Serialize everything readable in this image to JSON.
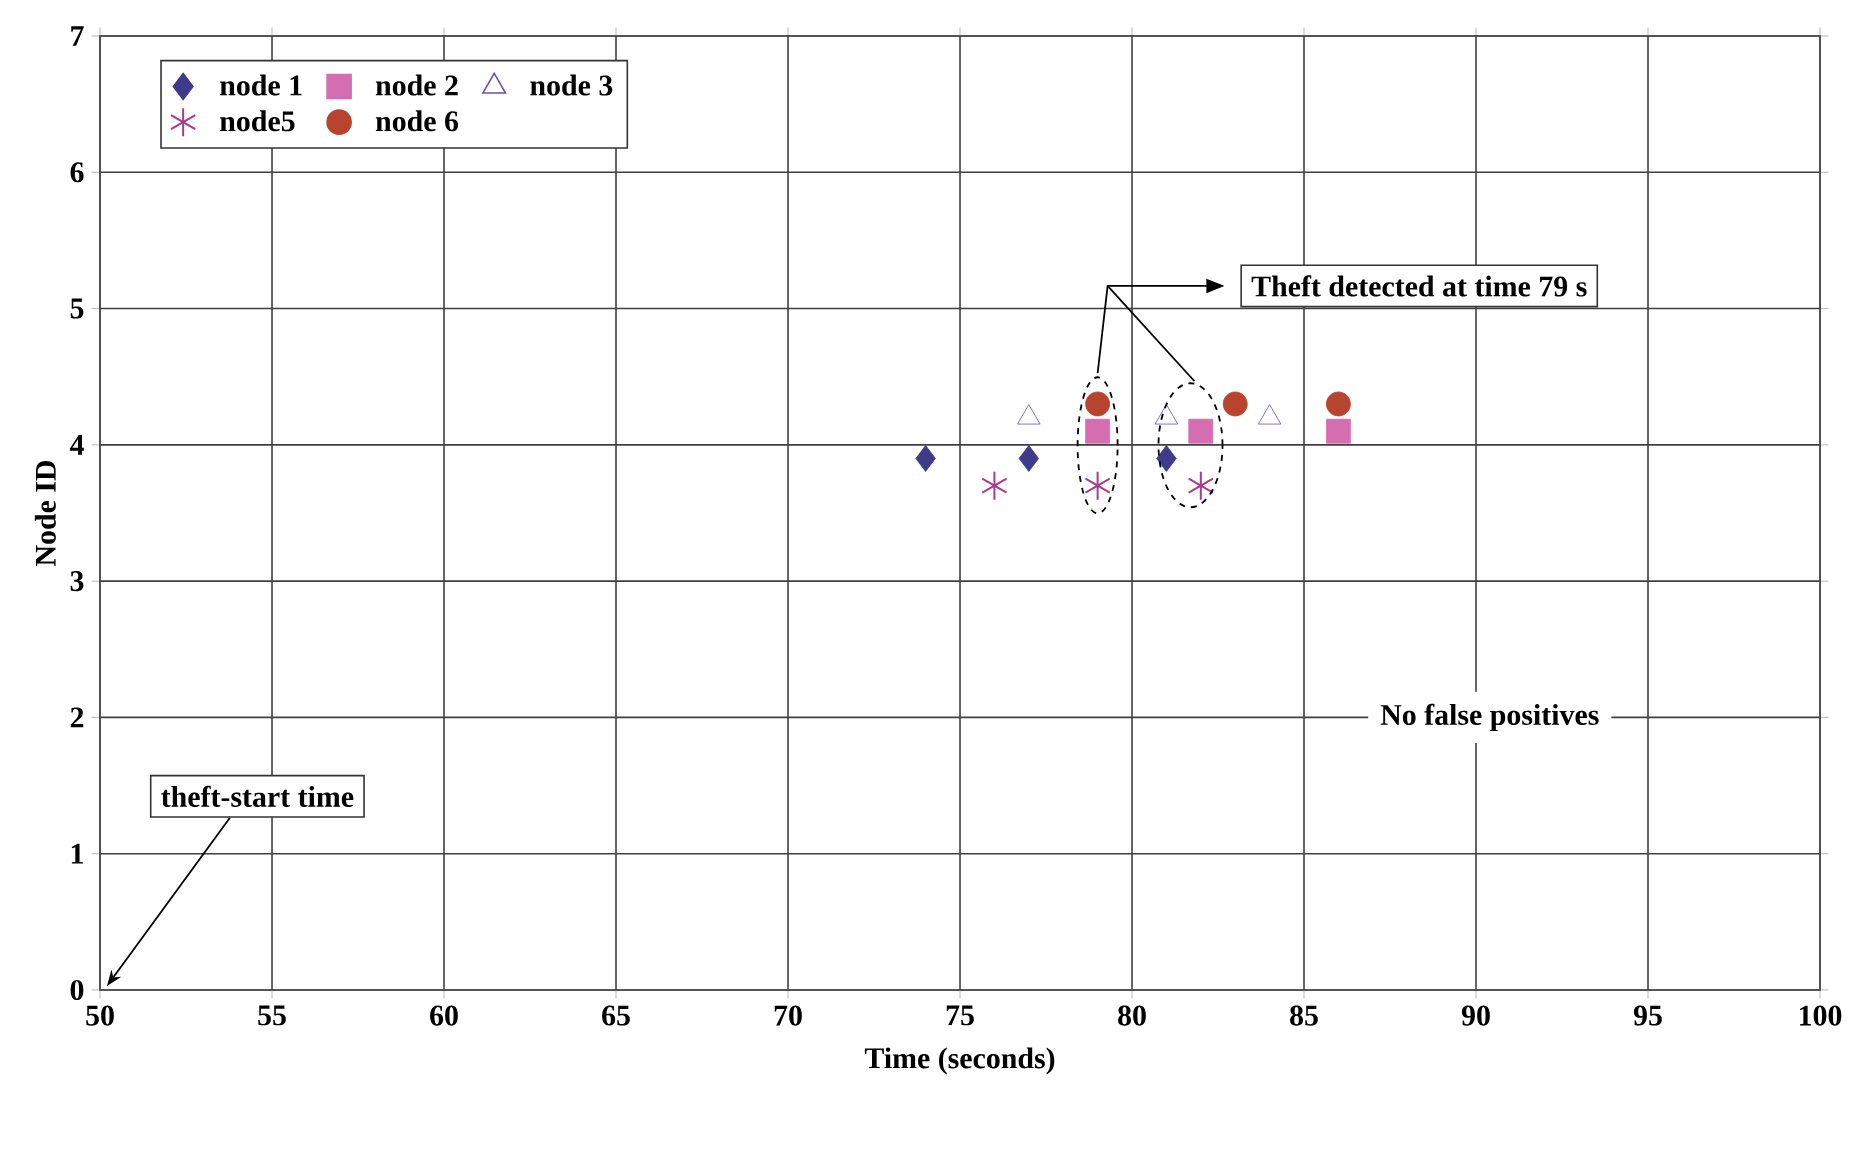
{
  "chart_data": {
    "type": "scatter",
    "xlabel": "Time (seconds)",
    "ylabel": "Node ID",
    "xlim": [
      50,
      100
    ],
    "xticks": [
      50,
      55,
      60,
      65,
      70,
      75,
      80,
      85,
      90,
      95,
      100
    ],
    "ylim": [
      0,
      7
    ],
    "yticks": [
      0,
      1,
      2,
      3,
      4,
      5,
      6,
      7
    ],
    "grid": true,
    "legend": "top left",
    "series": [
      {
        "name": "node 1",
        "color": "#3f3a8a",
        "marker": "diamond",
        "x": [
          74,
          77,
          81
        ],
        "values": [
          3.9,
          3.9,
          3.9
        ]
      },
      {
        "name": "node 2",
        "color": "#d46eb0",
        "marker": "square",
        "x": [
          79,
          82,
          86
        ],
        "values": [
          4.1,
          4.1,
          4.1
        ]
      },
      {
        "name": "node 3",
        "color": "#6a4fb0",
        "marker": "triangle",
        "x": [
          77,
          81,
          84
        ],
        "values": [
          4.2,
          4.2,
          4.2
        ]
      },
      {
        "name": "node5",
        "color": "#a83a8f",
        "marker": "cross",
        "x": [
          76,
          79,
          82
        ],
        "values": [
          3.7,
          3.7,
          3.7
        ]
      },
      {
        "name": "node 6",
        "color": "#b8432e",
        "marker": "circle",
        "x": [
          79,
          83,
          86
        ],
        "values": [
          4.3,
          4.3,
          4.3
        ]
      }
    ],
    "annotations": [
      "Theft detected at time 79 s",
      "No false positives",
      "theft-start time"
    ]
  }
}
